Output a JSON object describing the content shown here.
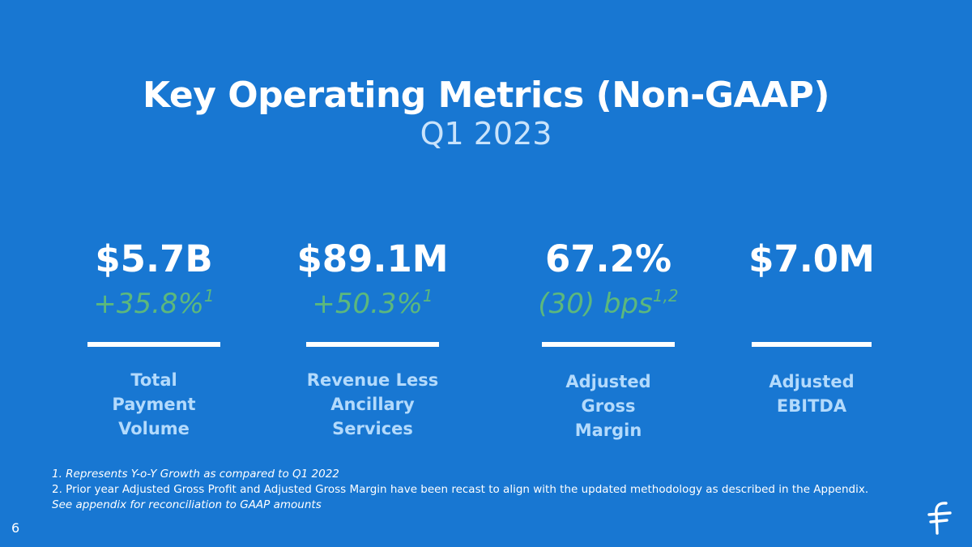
{
  "title": "Key Operating Metrics (Non-GAAP)",
  "subtitle": "Q1 2023",
  "metrics": [
    {
      "value": "$5.7B",
      "growth": "+35.8%",
      "growth_note": "1",
      "label_lines": [
        "Total",
        "Payment",
        "Volume"
      ]
    },
    {
      "value": "$89.1M",
      "growth": "+50.3%",
      "growth_note": "1",
      "label_lines": [
        "Revenue Less",
        "Ancillary",
        "Services"
      ]
    },
    {
      "value": "67.2%",
      "growth": "(30) bps",
      "growth_note": "1,2",
      "label_lines": [
        "Adjusted",
        "Gross",
        "Margin"
      ]
    },
    {
      "value": "$7.0M",
      "growth": "",
      "growth_note": "",
      "label_lines": [
        "Adjusted",
        "EBITDA"
      ]
    }
  ],
  "footnotes": {
    "note1": "1. Represents Y-o-Y Growth as compared to Q1 2022",
    "note2": "2. Prior year Adjusted Gross Profit and Adjusted Gross Margin have been recast to align with the updated methodology as described in the Appendix.",
    "note3": "See appendix for reconciliation to GAAP amounts"
  },
  "page_number": "6",
  "colors": {
    "background": "#1877d2",
    "growth_green": "#5cb87d",
    "label_blue": "#b3dafc"
  },
  "logo_icon": "flywire-logo-icon"
}
